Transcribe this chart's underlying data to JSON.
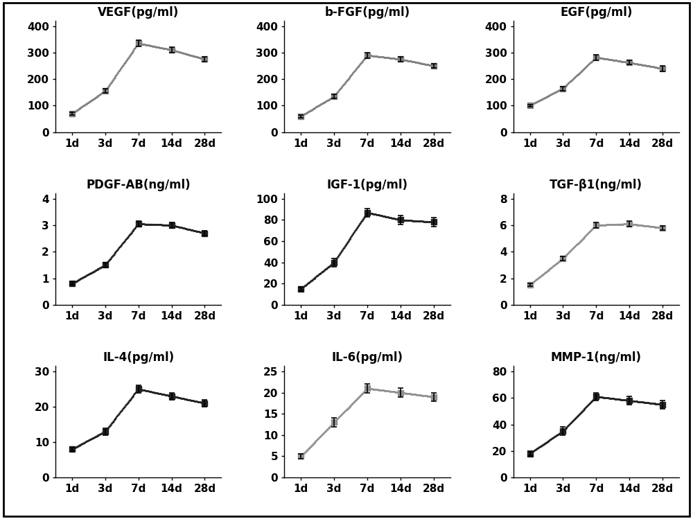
{
  "x_labels": [
    "1d",
    "3d",
    "7d",
    "14d",
    "28d"
  ],
  "x_values": [
    1,
    2,
    3,
    4,
    5
  ],
  "plots": [
    {
      "title": "VEGF(pg/ml)",
      "values": [
        70,
        155,
        335,
        310,
        275
      ],
      "errors": [
        5,
        8,
        12,
        10,
        8
      ],
      "ylim": [
        0,
        420
      ],
      "yticks": [
        0,
        100,
        200,
        300,
        400
      ],
      "color": "#808080",
      "linewidth": 4.0
    },
    {
      "title": "b-FGF(pg/ml)",
      "values": [
        60,
        135,
        290,
        275,
        250
      ],
      "errors": [
        5,
        8,
        10,
        10,
        8
      ],
      "ylim": [
        0,
        420
      ],
      "yticks": [
        0,
        100,
        200,
        300,
        400
      ],
      "color": "#808080",
      "linewidth": 4.0
    },
    {
      "title": "EGF(pg/ml)",
      "values": [
        100,
        165,
        282,
        262,
        240
      ],
      "errors": [
        5,
        8,
        10,
        8,
        10
      ],
      "ylim": [
        0,
        420
      ],
      "yticks": [
        0,
        100,
        200,
        300,
        400
      ],
      "color": "#808080",
      "linewidth": 4.0
    },
    {
      "title": "PDGF-AB(ng/ml)",
      "values": [
        0.8,
        1.5,
        3.05,
        3.0,
        2.7
      ],
      "errors": [
        0.05,
        0.1,
        0.1,
        0.1,
        0.1
      ],
      "ylim": [
        0,
        4.2
      ],
      "yticks": [
        0,
        1,
        2,
        3,
        4
      ],
      "color": "#202020",
      "linewidth": 4.0
    },
    {
      "title": "IGF-1(pg/ml)",
      "values": [
        15,
        40,
        87,
        80,
        78
      ],
      "errors": [
        2,
        4,
        4,
        4,
        4
      ],
      "ylim": [
        0,
        105
      ],
      "yticks": [
        0,
        20,
        40,
        60,
        80,
        100
      ],
      "color": "#202020",
      "linewidth": 4.0
    },
    {
      "title": "TGF-β1(ng/ml)",
      "values": [
        1.5,
        3.5,
        6.0,
        6.1,
        5.8
      ],
      "errors": [
        0.1,
        0.15,
        0.2,
        0.2,
        0.15
      ],
      "ylim": [
        0,
        8.4
      ],
      "yticks": [
        0,
        2,
        4,
        6,
        8
      ],
      "color": "#909090",
      "linewidth": 4.0
    },
    {
      "title": "IL-4(pg/ml)",
      "values": [
        8,
        13,
        25,
        23,
        21
      ],
      "errors": [
        0.5,
        1,
        1,
        1,
        1
      ],
      "ylim": [
        0,
        31.5
      ],
      "yticks": [
        0,
        10,
        20,
        30
      ],
      "color": "#202020",
      "linewidth": 4.0
    },
    {
      "title": "IL-6(pg/ml)",
      "values": [
        5,
        13,
        21,
        20,
        19
      ],
      "errors": [
        0.5,
        1,
        1,
        1,
        1
      ],
      "ylim": [
        0,
        26.25
      ],
      "yticks": [
        0,
        5,
        10,
        15,
        20,
        25
      ],
      "color": "#909090",
      "linewidth": 4.0
    },
    {
      "title": "MMP-1(ng/ml)",
      "values": [
        18,
        35,
        61,
        58,
        55
      ],
      "errors": [
        2,
        3,
        3,
        3,
        3
      ],
      "ylim": [
        0,
        84
      ],
      "yticks": [
        0,
        20,
        40,
        60,
        80
      ],
      "color": "#202020",
      "linewidth": 4.0
    }
  ],
  "bg_color": "#ffffff",
  "title_fontsize": 12,
  "tick_fontsize": 11,
  "capsize": 3,
  "markersize": 6
}
